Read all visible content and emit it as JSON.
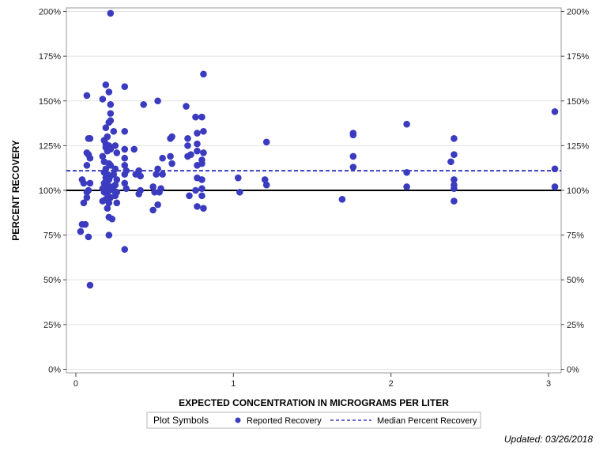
{
  "chart_data": {
    "type": "scatter",
    "xlabel": "EXPECTED CONCENTRATION IN MICROGRAMS PER LITER",
    "ylabel": "PERCENT RECOVERY",
    "xlim": [
      -0.06,
      3.08
    ],
    "ylim": [
      -2,
      202
    ],
    "x_ticks": [
      0,
      1,
      2,
      3
    ],
    "x_tick_labels": [
      "0",
      "1",
      "2",
      "3"
    ],
    "y_ticks": [
      0,
      25,
      50,
      75,
      100,
      125,
      150,
      175,
      200
    ],
    "y_tick_labels": [
      "0%",
      "25%",
      "50%",
      "75%",
      "100%",
      "125%",
      "150%",
      "175%",
      "200%"
    ],
    "grid": true,
    "reference_line": {
      "name": "100% reference",
      "y": 100
    },
    "median_line": {
      "name": "Median Percent Recovery",
      "y": 111
    },
    "series": [
      {
        "name": "Reported Recovery",
        "points": [
          [
            0.04,
            81
          ],
          [
            0.06,
            81
          ],
          [
            0.03,
            77
          ],
          [
            0.08,
            74
          ],
          [
            0.09,
            47
          ],
          [
            0.05,
            93
          ],
          [
            0.07,
            96
          ],
          [
            0.07,
            99
          ],
          [
            0.08,
            100
          ],
          [
            0.09,
            104
          ],
          [
            0.04,
            106
          ],
          [
            0.05,
            104
          ],
          [
            0.07,
            114
          ],
          [
            0.07,
            121
          ],
          [
            0.09,
            118
          ],
          [
            0.08,
            120
          ],
          [
            0.08,
            129
          ],
          [
            0.09,
            129
          ],
          [
            0.07,
            153
          ],
          [
            0.17,
            151
          ],
          [
            0.19,
            159
          ],
          [
            0.21,
            155
          ],
          [
            0.22,
            148
          ],
          [
            0.22,
            143
          ],
          [
            0.21,
            138
          ],
          [
            0.22,
            139
          ],
          [
            0.19,
            135
          ],
          [
            0.2,
            130
          ],
          [
            0.18,
            128
          ],
          [
            0.19,
            126
          ],
          [
            0.2,
            125
          ],
          [
            0.21,
            125
          ],
          [
            0.19,
            124
          ],
          [
            0.22,
            123
          ],
          [
            0.2,
            122
          ],
          [
            0.17,
            119
          ],
          [
            0.18,
            116
          ],
          [
            0.21,
            115
          ],
          [
            0.22,
            114
          ],
          [
            0.19,
            112
          ],
          [
            0.18,
            110
          ],
          [
            0.2,
            109
          ],
          [
            0.22,
            108
          ],
          [
            0.19,
            107
          ],
          [
            0.21,
            106
          ],
          [
            0.18,
            104
          ],
          [
            0.2,
            103
          ],
          [
            0.22,
            102
          ],
          [
            0.17,
            101
          ],
          [
            0.19,
            100
          ],
          [
            0.21,
            100
          ],
          [
            0.18,
            99
          ],
          [
            0.2,
            98
          ],
          [
            0.22,
            96
          ],
          [
            0.19,
            95
          ],
          [
            0.17,
            94
          ],
          [
            0.21,
            93
          ],
          [
            0.2,
            90
          ],
          [
            0.21,
            85
          ],
          [
            0.23,
            84
          ],
          [
            0.21,
            75
          ],
          [
            0.24,
            133
          ],
          [
            0.25,
            125
          ],
          [
            0.26,
            121
          ],
          [
            0.25,
            112
          ],
          [
            0.24,
            109
          ],
          [
            0.26,
            106
          ],
          [
            0.25,
            103
          ],
          [
            0.24,
            100
          ],
          [
            0.26,
            99
          ],
          [
            0.25,
            97
          ],
          [
            0.26,
            93
          ],
          [
            0.22,
            199
          ],
          [
            0.31,
            158
          ],
          [
            0.31,
            133
          ],
          [
            0.31,
            123
          ],
          [
            0.31,
            118
          ],
          [
            0.31,
            114
          ],
          [
            0.32,
            111
          ],
          [
            0.31,
            109
          ],
          [
            0.31,
            104
          ],
          [
            0.32,
            101
          ],
          [
            0.31,
            67
          ],
          [
            0.37,
            123
          ],
          [
            0.38,
            109
          ],
          [
            0.4,
            111
          ],
          [
            0.41,
            108
          ],
          [
            0.41,
            100
          ],
          [
            0.4,
            98
          ],
          [
            0.43,
            148
          ],
          [
            0.49,
            102
          ],
          [
            0.49,
            89
          ],
          [
            0.5,
            99
          ],
          [
            0.51,
            109
          ],
          [
            0.52,
            112
          ],
          [
            0.52,
            92
          ],
          [
            0.53,
            99
          ],
          [
            0.52,
            150
          ],
          [
            0.55,
            118
          ],
          [
            0.55,
            109
          ],
          [
            0.54,
            101
          ],
          [
            0.6,
            129
          ],
          [
            0.61,
            130
          ],
          [
            0.6,
            119
          ],
          [
            0.61,
            115
          ],
          [
            0.7,
            147
          ],
          [
            0.71,
            129
          ],
          [
            0.71,
            125
          ],
          [
            0.71,
            119
          ],
          [
            0.73,
            120
          ],
          [
            0.72,
            97
          ],
          [
            0.76,
            141
          ],
          [
            0.77,
            132
          ],
          [
            0.77,
            126
          ],
          [
            0.77,
            122
          ],
          [
            0.77,
            114
          ],
          [
            0.77,
            107
          ],
          [
            0.76,
            100
          ],
          [
            0.77,
            91
          ],
          [
            0.81,
            165
          ],
          [
            0.8,
            141
          ],
          [
            0.81,
            133
          ],
          [
            0.81,
            121
          ],
          [
            0.8,
            117
          ],
          [
            0.8,
            115
          ],
          [
            0.8,
            106
          ],
          [
            0.8,
            101
          ],
          [
            0.8,
            97
          ],
          [
            0.81,
            90
          ],
          [
            1.03,
            107
          ],
          [
            1.04,
            99
          ],
          [
            1.21,
            127
          ],
          [
            1.2,
            106
          ],
          [
            1.21,
            103
          ],
          [
            1.69,
            95
          ],
          [
            1.76,
            132
          ],
          [
            1.76,
            131
          ],
          [
            1.76,
            119
          ],
          [
            1.76,
            113
          ],
          [
            2.1,
            137
          ],
          [
            2.1,
            110
          ],
          [
            2.1,
            102
          ],
          [
            2.38,
            116
          ],
          [
            2.4,
            129
          ],
          [
            2.4,
            120
          ],
          [
            2.4,
            106
          ],
          [
            2.4,
            103
          ],
          [
            2.4,
            101
          ],
          [
            2.4,
            94
          ],
          [
            3.04,
            144
          ],
          [
            3.04,
            112
          ],
          [
            3.04,
            102
          ]
        ]
      }
    ],
    "legend": {
      "title": "Plot Symbols",
      "position": "bottom-center",
      "items": [
        {
          "label": "Reported Recovery",
          "symbol": "filled-circle"
        },
        {
          "label": "Median Percent Recovery",
          "symbol": "dashed-line"
        }
      ]
    },
    "footnote": "Updated: 03/26/2018",
    "colors": {
      "marker": "#3b3bbf",
      "median_line": "#3b3bbf",
      "reference_line": "#000000",
      "grid": "#e2e2e2",
      "frame": "#9a9a9a"
    }
  }
}
